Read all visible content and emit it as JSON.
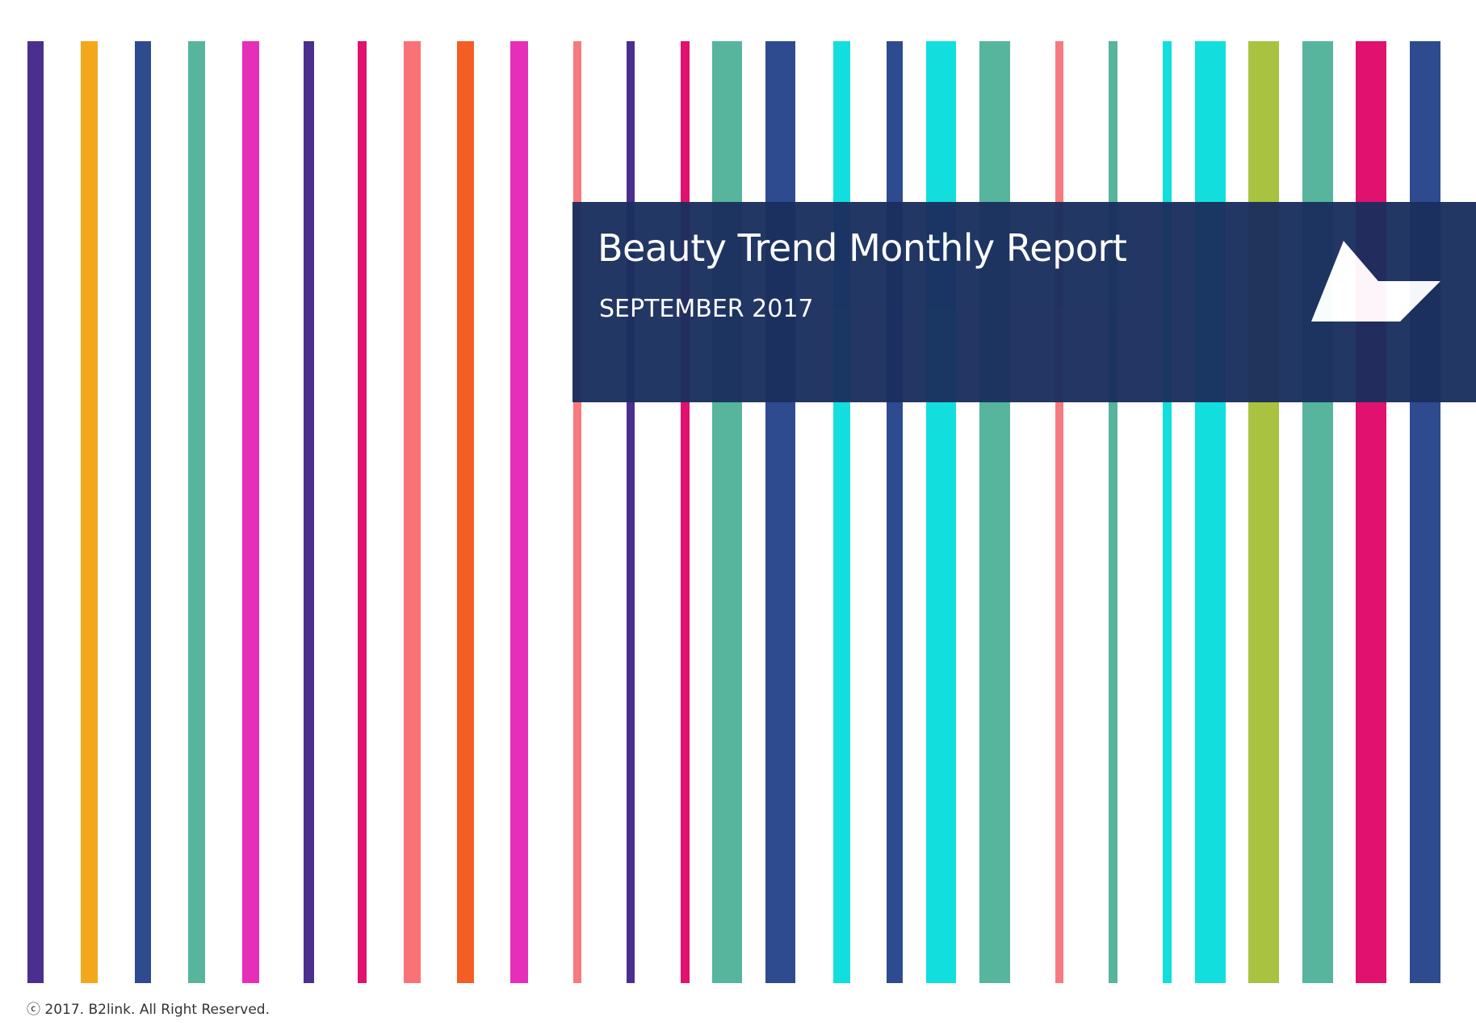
{
  "report": {
    "title": "Beauty Trend Monthly Report",
    "subtitle": "SEPTEMBER 2017"
  },
  "footer": {
    "copyright": "ⓒ 2017. B2link. All Right Reserved."
  },
  "logo": {
    "icon": "b2link-logo-icon"
  },
  "colors": {
    "banner": "#1b2f5e",
    "stripes": [
      "#4a2f8e",
      "#f3a81b",
      "#2e4b8f",
      "#57b49d",
      "#e52fb8",
      "#4a2f8e",
      "#e0116f",
      "#fb7276",
      "#f45d24",
      "#e52fb8",
      "#f77a7f",
      "#4a2f8e",
      "#e0116f",
      "#57b49d",
      "#2e4b8f",
      "#12dede",
      "#2e4b8f",
      "#12dede",
      "#57b49d",
      "#f77a7f",
      "#57b49d",
      "#12dede",
      "#12dede",
      "#a9c23f",
      "#57b49d",
      "#e0116f",
      "#2e4b8f"
    ]
  }
}
